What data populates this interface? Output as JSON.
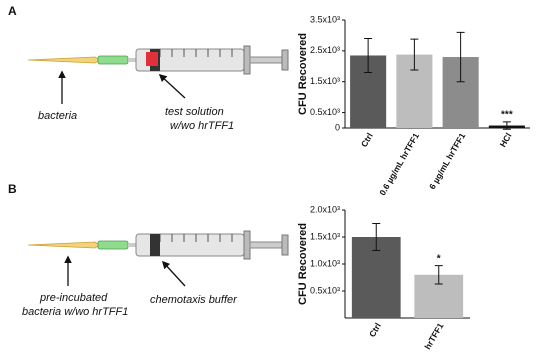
{
  "panels": [
    "A",
    "B"
  ],
  "illustrations": [
    {
      "labels": [
        "bacteria",
        "test solution",
        "w/wo hrTFF1"
      ]
    },
    {
      "labels": [
        "pre-incubated",
        "bacteria w/wo hrTFF1",
        "chemotaxis buffer"
      ]
    }
  ],
  "chart_data": [
    {
      "type": "bar",
      "y_label": "CFU Recovered",
      "categories": [
        "Ctrl",
        "0.6 µg/mL hrTFF1",
        "6 µg/mL hrTFF1",
        "HCl"
      ],
      "values": [
        2350,
        2380,
        2300,
        80
      ],
      "errors": [
        550,
        500,
        800,
        120
      ],
      "colors": [
        "#5a5a5a",
        "#bdbdbd",
        "#8c8c8c",
        "#111111"
      ],
      "significance": [
        null,
        null,
        null,
        "***"
      ],
      "ylim": [
        0,
        3500
      ],
      "yticks": [
        0,
        {
          "value": 500,
          "label": "0.5x10³"
        },
        {
          "value": 1500,
          "label": "1.5x10³"
        },
        {
          "value": 2500,
          "label": "2.5x10³"
        },
        {
          "value": 3500,
          "label": "3.5x10³"
        }
      ]
    },
    {
      "type": "bar",
      "y_label": "CFU Recovered",
      "categories": [
        "Ctrl",
        "hrTFF1"
      ],
      "values": [
        1500,
        800
      ],
      "errors": [
        250,
        170
      ],
      "colors": [
        "#5a5a5a",
        "#bdbdbd"
      ],
      "significance": [
        null,
        "*"
      ],
      "ylim": [
        0,
        2000
      ],
      "yticks": [
        {
          "value": 500,
          "label": "0.5x10³"
        },
        {
          "value": 1000,
          "label": "1.0x10³"
        },
        {
          "value": 1500,
          "label": "1.5x10³"
        },
        {
          "value": 2000,
          "label": "2.0x10³"
        }
      ]
    }
  ]
}
